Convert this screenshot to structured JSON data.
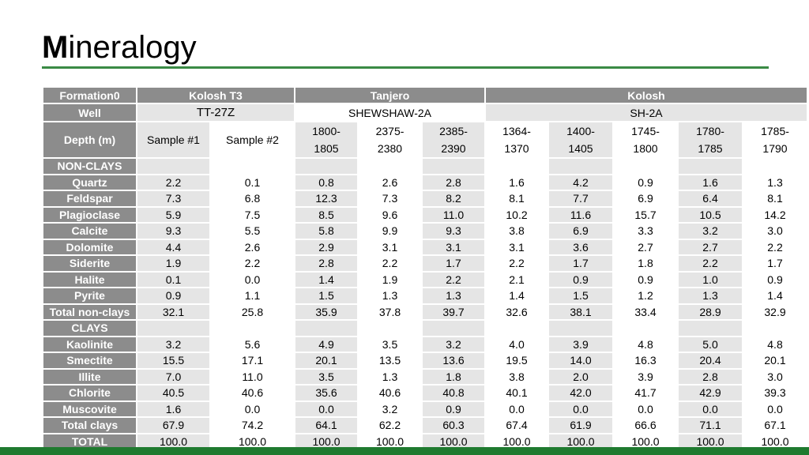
{
  "title": {
    "first_letter": "M",
    "rest": "ineralogy"
  },
  "header": {
    "formation_label": "Formation0",
    "formations": [
      "Kolosh T3",
      "Tanjero",
      "Kolosh"
    ],
    "well_label": "Well",
    "wells": [
      "TT-27Z",
      "SHEWSHAW-2A",
      "SH-2A"
    ],
    "depth_label": "Depth (m)",
    "depths": [
      [
        "Sample #1"
      ],
      [
        "Sample #2"
      ],
      [
        "1800-",
        "1805"
      ],
      [
        "2375-",
        "2380"
      ],
      [
        "2385-",
        "2390"
      ],
      [
        "1364-",
        "1370"
      ],
      [
        "1400-",
        "1405"
      ],
      [
        "1745-",
        "1800"
      ],
      [
        "1780-",
        "1785"
      ],
      [
        "1785-",
        "1790"
      ]
    ]
  },
  "sections": [
    {
      "label": "NON-CLAYS",
      "rows": [
        {
          "label": "Quartz",
          "values": [
            "2.2",
            "0.1",
            "0.8",
            "2.6",
            "2.8",
            "1.6",
            "4.2",
            "0.9",
            "1.6",
            "1.3"
          ]
        },
        {
          "label": "Feldspar",
          "values": [
            "7.3",
            "6.8",
            "12.3",
            "7.3",
            "8.2",
            "8.1",
            "7.7",
            "6.9",
            "6.4",
            "8.1"
          ]
        },
        {
          "label": "Plagioclase",
          "values": [
            "5.9",
            "7.5",
            "8.5",
            "9.6",
            "11.0",
            "10.2",
            "11.6",
            "15.7",
            "10.5",
            "14.2"
          ]
        },
        {
          "label": "Calcite",
          "values": [
            "9.3",
            "5.5",
            "5.8",
            "9.9",
            "9.3",
            "3.8",
            "6.9",
            "3.3",
            "3.2",
            "3.0"
          ]
        },
        {
          "label": "Dolomite",
          "values": [
            "4.4",
            "2.6",
            "2.9",
            "3.1",
            "3.1",
            "3.1",
            "3.6",
            "2.7",
            "2.7",
            "2.2"
          ]
        },
        {
          "label": "Siderite",
          "values": [
            "1.9",
            "2.2",
            "2.8",
            "2.2",
            "1.7",
            "2.2",
            "1.7",
            "1.8",
            "2.2",
            "1.7"
          ]
        },
        {
          "label": "Halite",
          "values": [
            "0.1",
            "0.0",
            "1.4",
            "1.9",
            "2.2",
            "2.1",
            "0.9",
            "0.9",
            "1.0",
            "0.9"
          ]
        },
        {
          "label": "Pyrite",
          "values": [
            "0.9",
            "1.1",
            "1.5",
            "1.3",
            "1.3",
            "1.4",
            "1.5",
            "1.2",
            "1.3",
            "1.4"
          ]
        },
        {
          "label": "Total non-clays",
          "values": [
            "32.1",
            "25.8",
            "35.9",
            "37.8",
            "39.7",
            "32.6",
            "38.1",
            "33.4",
            "28.9",
            "32.9"
          ]
        }
      ]
    },
    {
      "label": "CLAYS",
      "rows": [
        {
          "label": "Kaolinite",
          "values": [
            "3.2",
            "5.6",
            "4.9",
            "3.5",
            "3.2",
            "4.0",
            "3.9",
            "4.8",
            "5.0",
            "4.8"
          ]
        },
        {
          "label": "Smectite",
          "values": [
            "15.5",
            "17.1",
            "20.1",
            "13.5",
            "13.6",
            "19.5",
            "14.0",
            "16.3",
            "20.4",
            "20.1"
          ]
        },
        {
          "label": "Illite",
          "values": [
            "7.0",
            "11.0",
            "3.5",
            "1.3",
            "1.8",
            "3.8",
            "2.0",
            "3.9",
            "2.8",
            "3.0"
          ]
        },
        {
          "label": "Chlorite",
          "values": [
            "40.5",
            "40.6",
            "35.6",
            "40.6",
            "40.8",
            "40.1",
            "42.0",
            "41.7",
            "42.9",
            "39.3"
          ]
        },
        {
          "label": "Muscovite",
          "values": [
            "1.6",
            "0.0",
            "0.0",
            "3.2",
            "0.9",
            "0.0",
            "0.0",
            "0.0",
            "0.0",
            "0.0"
          ]
        },
        {
          "label": "Total clays",
          "values": [
            "67.9",
            "74.2",
            "64.1",
            "62.2",
            "60.3",
            "67.4",
            "61.9",
            "66.6",
            "71.1",
            "67.1"
          ]
        }
      ]
    }
  ],
  "total_row": {
    "label": "TOTAL",
    "values": [
      "100.0",
      "100.0",
      "100.0",
      "100.0",
      "100.0",
      "100.0",
      "100.0",
      "100.0",
      "100.0",
      "100.0"
    ]
  },
  "colors": {
    "header_gray": "#8c8c8c",
    "cell_gray": "#e5e5e5",
    "accent_green": "#3a8a45",
    "footer_green": "#1f7a2f"
  }
}
